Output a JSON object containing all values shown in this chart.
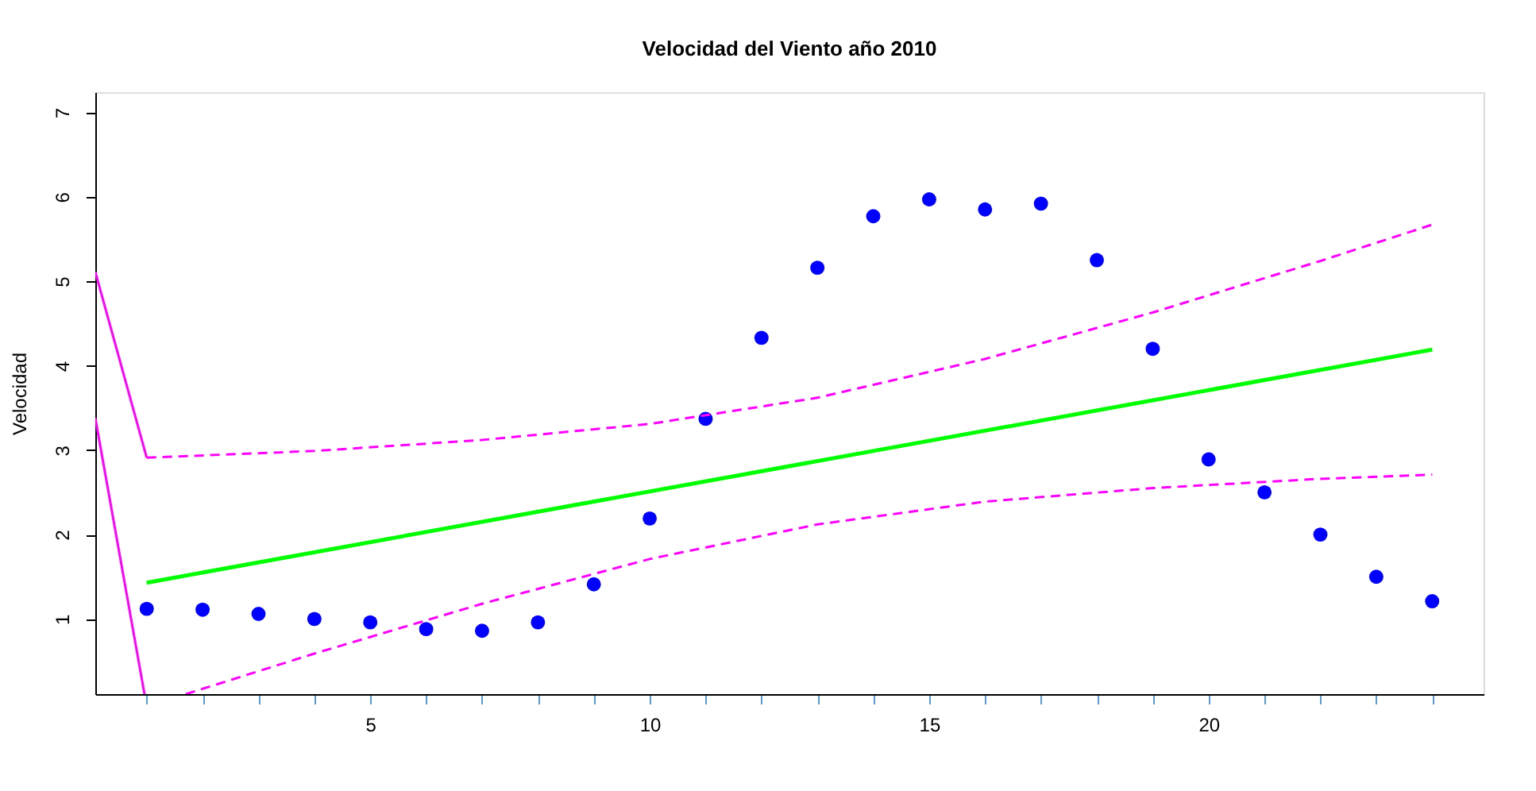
{
  "chart_data": {
    "type": "scatter",
    "title": "Velocidad del Viento año 2010",
    "ylabel": "Velocidad",
    "x": [
      1,
      2,
      3,
      4,
      5,
      6,
      7,
      8,
      9,
      10,
      11,
      12,
      13,
      14,
      15,
      16,
      17,
      18,
      19,
      20,
      21,
      22,
      23,
      24
    ],
    "series": [
      {
        "color": "#0000ff",
        "marker": "circle",
        "values": [
          1.12,
          1.11,
          1.06,
          1.0,
          0.96,
          0.88,
          0.86,
          0.96,
          1.41,
          2.19,
          3.37,
          4.33,
          5.16,
          5.77,
          5.97,
          5.85,
          5.92,
          5.25,
          4.2,
          2.89,
          2.5,
          2.0,
          1.5,
          1.21
        ]
      },
      {
        "type": "line",
        "color": "#00ff00",
        "line_style": "solid",
        "x": [
          1,
          24
        ],
        "values": [
          1.43,
          4.19
        ]
      },
      {
        "type": "line",
        "color": "#ff00ff",
        "line_style": "dashed",
        "x": [
          1,
          4,
          7,
          10,
          13,
          16,
          19,
          22,
          24
        ],
        "values": [
          2.91,
          2.99,
          3.12,
          3.31,
          3.62,
          4.08,
          4.63,
          5.24,
          5.67
        ]
      },
      {
        "type": "line",
        "color": "#ff00ff",
        "line_style": "dashed",
        "x": [
          1.7,
          4,
          7,
          10,
          13,
          16,
          19,
          22,
          24
        ],
        "values": [
          0.11,
          0.59,
          1.18,
          1.71,
          2.12,
          2.39,
          2.55,
          2.66,
          2.71
        ]
      },
      {
        "type": "line",
        "color": "#ff00ff",
        "line_style": "solid",
        "x": [
          0.08,
          1
        ],
        "values": [
          5.11,
          2.91
        ]
      },
      {
        "type": "line",
        "color": "#ff00ff",
        "line_style": "solid",
        "x": [
          0.08,
          0.96
        ],
        "values": [
          3.38,
          0.11
        ]
      }
    ],
    "xlim": [
      0.08,
      24.92
    ],
    "xticks": [
      {
        "value": 1,
        "label": null
      },
      {
        "value": 2,
        "label": null
      },
      {
        "value": 3,
        "label": null
      },
      {
        "value": 4,
        "label": null
      },
      5,
      {
        "value": 6,
        "label": null
      },
      {
        "value": 7,
        "label": null
      },
      {
        "value": 8,
        "label": null
      },
      {
        "value": 9,
        "label": null
      },
      10,
      {
        "value": 11,
        "label": null
      },
      {
        "value": 12,
        "label": null
      },
      {
        "value": 13,
        "label": null
      },
      {
        "value": 14,
        "label": null
      },
      15,
      {
        "value": 16,
        "label": null
      },
      {
        "value": 17,
        "label": null
      },
      {
        "value": 18,
        "label": null
      },
      {
        "value": 19,
        "label": null
      },
      20,
      {
        "value": 21,
        "label": null
      },
      {
        "value": 22,
        "label": null
      },
      {
        "value": 23,
        "label": null
      },
      {
        "value": 24,
        "label": null
      }
    ],
    "ylim": [
      0.11,
      7.24
    ],
    "yticks": [
      1,
      2,
      3,
      4,
      5,
      6,
      7
    ]
  }
}
